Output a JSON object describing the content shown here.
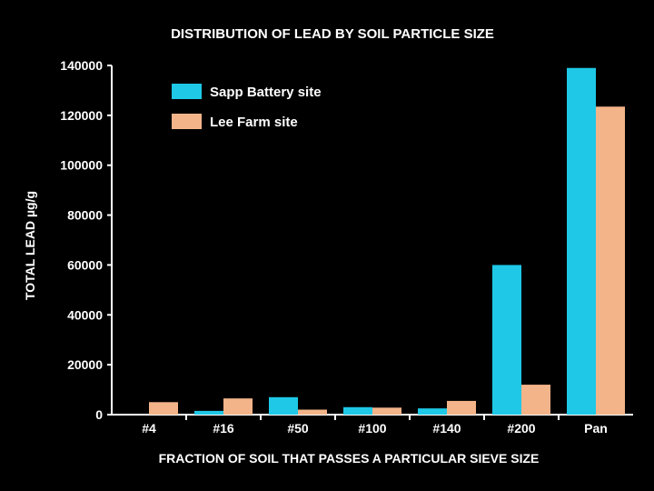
{
  "chart_data": {
    "type": "bar",
    "title": "DISTRIBUTION OF LEAD BY SOIL PARTICLE SIZE",
    "xlabel": "FRACTION OF SOIL THAT PASSES A PARTICULAR SIEVE SIZE",
    "ylabel": "TOTAL LEAD µg/g",
    "categories": [
      "#4",
      "#16",
      "#50",
      "#100",
      "#140",
      "#200",
      "Pan"
    ],
    "ylim": [
      0,
      140000
    ],
    "yticks": [
      0,
      20000,
      40000,
      60000,
      80000,
      100000,
      120000,
      140000
    ],
    "grid": false,
    "legend_position": "top-left",
    "series": [
      {
        "name": "Sapp Battery site",
        "color": "#1ec8e6",
        "values": [
          0,
          1500,
          7000,
          3000,
          2500,
          60000,
          139000
        ]
      },
      {
        "name": "Lee Farm site",
        "color": "#f4b48a",
        "values": [
          5000,
          6500,
          2000,
          2800,
          5500,
          12000,
          123500
        ]
      }
    ]
  }
}
